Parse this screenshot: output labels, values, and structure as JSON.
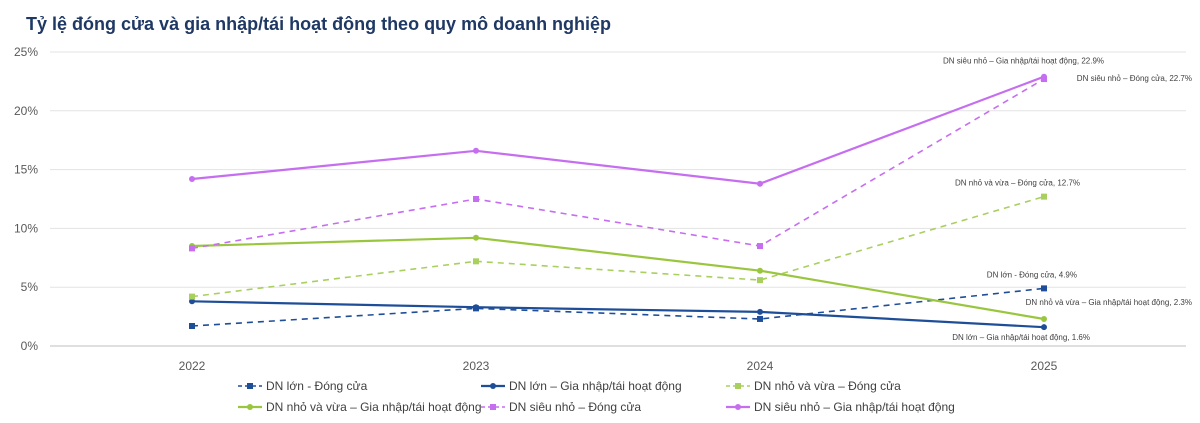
{
  "chart_data": {
    "type": "line",
    "title": "Tỷ lệ đóng cửa và gia nhập/tái hoạt động theo quy mô doanh nghiệp",
    "xlabel": "",
    "ylabel": "",
    "categories": [
      "2022",
      "2023",
      "2024",
      "2025"
    ],
    "ylim": [
      0,
      25
    ],
    "y_ticks": [
      "0%",
      "5%",
      "10%",
      "15%",
      "20%",
      "25%"
    ],
    "y_tick_values": [
      0,
      5,
      10,
      15,
      20,
      25
    ],
    "grid": "horizontal",
    "legend_position": "bottom",
    "series": [
      {
        "name": "DN lớn - Đóng cửa",
        "values": [
          1.7,
          3.2,
          2.3,
          4.9
        ],
        "color": "#1f4e99",
        "dash": true,
        "label": "DN lớn - Đóng cửa, 4.9%"
      },
      {
        "name": "DN lớn – Gia nhập/tái hoạt động",
        "values": [
          3.8,
          3.3,
          2.9,
          1.6
        ],
        "color": "#1f4e99",
        "dash": false,
        "label": "DN lớn – Gia nhập/tái hoạt động, 1.6%"
      },
      {
        "name": "DN nhỏ và vừa – Đóng cửa",
        "values": [
          4.2,
          7.2,
          5.6,
          12.7
        ],
        "color": "#a9d05f",
        "dash": true,
        "label": "DN nhỏ và vừa – Đóng cửa, 12.7%"
      },
      {
        "name": "DN nhỏ và vừa – Gia nhập/tái hoạt động",
        "values": [
          8.5,
          9.2,
          6.4,
          2.3
        ],
        "color": "#9ac63f",
        "dash": false,
        "label": "DN nhỏ và vừa – Gia nhập/tái hoạt động, 2.3%"
      },
      {
        "name": "DN siêu nhỏ – Đóng cửa",
        "values": [
          8.3,
          12.5,
          8.5,
          22.7
        ],
        "color": "#c66ef0",
        "dash": true,
        "label": "DN siêu nhỏ – Đóng cửa, 22.7%"
      },
      {
        "name": "DN siêu nhỏ – Gia nhập/tái hoạt động",
        "values": [
          14.2,
          16.6,
          13.8,
          22.9
        ],
        "color": "#c66ef0",
        "dash": false,
        "label": "DN siêu nhỏ – Gia nhập/tái hoạt động, 22.9%"
      }
    ]
  }
}
